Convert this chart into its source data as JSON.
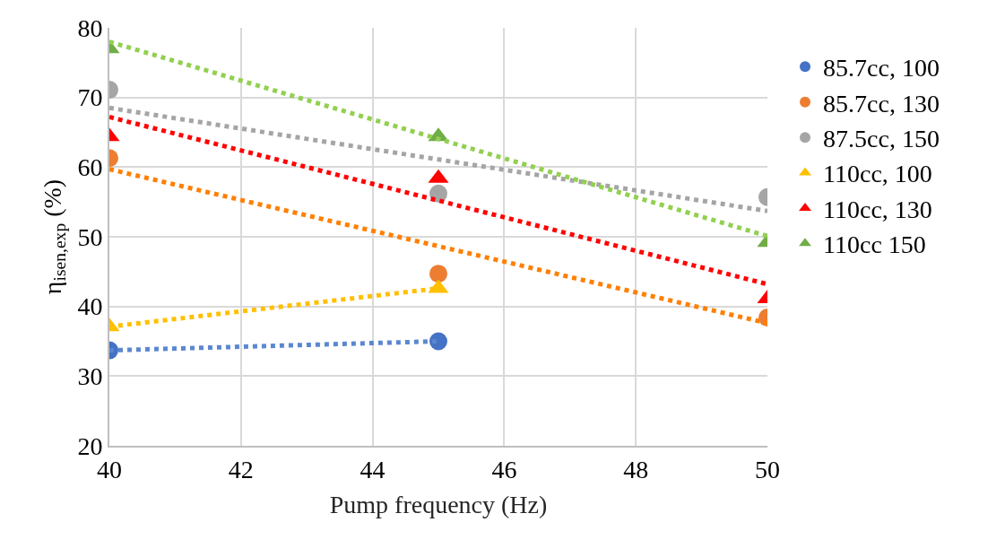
{
  "chart_data": {
    "type": "scatter",
    "xlabel": "Pump frequency (Hz)",
    "ylabel": "η$_{isen,exp}$ (%)",
    "xlim": [
      40,
      50
    ],
    "xticks": [
      40,
      42,
      44,
      46,
      48,
      50
    ],
    "ylim": [
      20,
      80
    ],
    "yticks": [
      20,
      30,
      40,
      50,
      60,
      70,
      80
    ],
    "grid": true,
    "legend": "right",
    "series": [
      {
        "name": "85.7cc, 100",
        "color": "#4472c4",
        "marker": "circle",
        "x": [
          40,
          45
        ],
        "values": [
          33.7,
          35.0
        ]
      },
      {
        "name": "85.7cc, 130",
        "color": "#ed7d31",
        "marker": "circle",
        "x": [
          40,
          45,
          50
        ],
        "values": [
          61.3,
          44.7,
          38.4
        ]
      },
      {
        "name": "87.5cc, 150",
        "color": "#a5a5a5",
        "marker": "circle",
        "x": [
          40,
          45,
          50
        ],
        "values": [
          71.1,
          56.2,
          55.7
        ]
      },
      {
        "name": "110cc, 100",
        "color": "#ffc000",
        "marker": "triangle",
        "x": [
          40,
          45
        ],
        "values": [
          37.1,
          42.6
        ]
      },
      {
        "name": "110cc, 130",
        "color": "#ff0000",
        "marker": "triangle",
        "x": [
          40,
          45,
          50
        ],
        "values": [
          64.4,
          58.4,
          41.1
        ]
      },
      {
        "name": "110cc 150",
        "color": "#70ad47",
        "marker": "triangle",
        "x": [
          40,
          45,
          50
        ],
        "values": [
          77.0,
          64.4,
          49.2
        ]
      },
      {
        "type": "line",
        "line_style": "dotted",
        "color": "#5b87d0",
        "x": [
          40,
          45
        ],
        "values": [
          33.7,
          35.0
        ]
      },
      {
        "type": "line",
        "line_style": "dotted",
        "color": "#ff7f00",
        "x": [
          40,
          50
        ],
        "values": [
          59.7,
          37.6
        ]
      },
      {
        "type": "line",
        "line_style": "dotted",
        "color": "#a5a5a5",
        "x": [
          40,
          50
        ],
        "values": [
          68.5,
          53.7
        ]
      },
      {
        "type": "line",
        "line_style": "dotted",
        "color": "#ffc000",
        "x": [
          40,
          45
        ],
        "values": [
          37.1,
          42.6
        ]
      },
      {
        "type": "line",
        "line_style": "dotted",
        "color": "#ff0000",
        "x": [
          40,
          50
        ],
        "values": [
          67.2,
          43.2
        ]
      },
      {
        "type": "line",
        "line_style": "dotted",
        "color": "#92d050",
        "x": [
          40,
          50
        ],
        "values": [
          78.0,
          50.1
        ]
      }
    ]
  }
}
